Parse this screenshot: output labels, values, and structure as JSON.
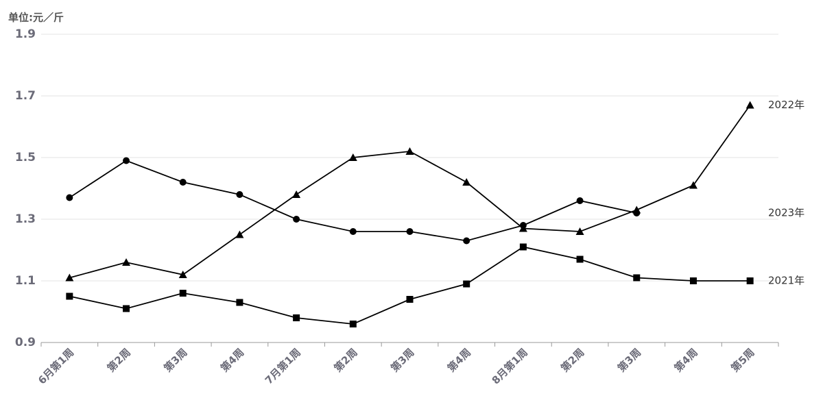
{
  "chart_data": {
    "type": "line",
    "y_label": "单位:元／斤",
    "categories": [
      "6月第1周",
      "第2周",
      "第3周",
      "第4周",
      "7月第1周",
      "第2周",
      "第3周",
      "第4周",
      "8月第1周",
      "第2周",
      "第3周",
      "第4周",
      "第5周"
    ],
    "series": [
      {
        "name": "2021年",
        "color": "#000000",
        "marker": "square",
        "values": [
          1.05,
          1.01,
          1.06,
          1.03,
          0.98,
          0.96,
          1.04,
          1.09,
          1.21,
          1.17,
          1.11,
          1.1,
          1.1
        ]
      },
      {
        "name": "2022年",
        "color": "#000000",
        "marker": "triangle",
        "values": [
          1.11,
          1.16,
          1.12,
          1.25,
          1.38,
          1.5,
          1.52,
          1.42,
          1.27,
          1.26,
          1.33,
          1.41,
          1.67
        ]
      },
      {
        "name": "2023年",
        "color": "#000000",
        "marker": "circle",
        "values": [
          1.37,
          1.49,
          1.42,
          1.38,
          1.3,
          1.26,
          1.26,
          1.23,
          1.28,
          1.36,
          1.32,
          null,
          null
        ]
      }
    ],
    "ylim": [
      0.9,
      1.9
    ],
    "yticks": [
      0.9,
      1.1,
      1.3,
      1.5,
      1.7,
      1.9
    ],
    "grid": true
  }
}
